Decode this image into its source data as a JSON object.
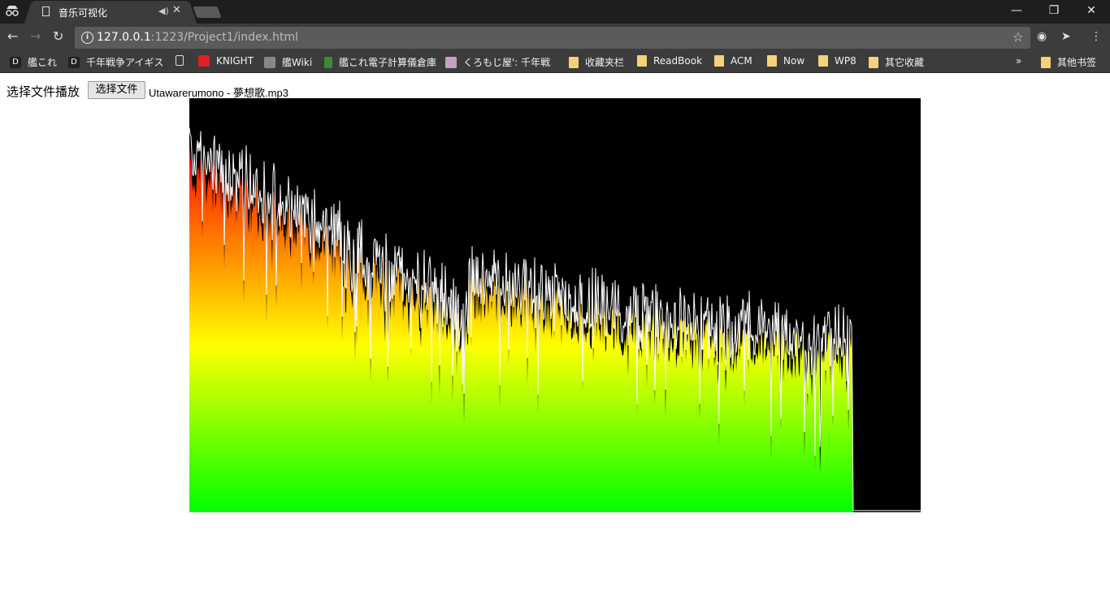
{
  "browser": {
    "tab_title": "音乐可视化",
    "url_host": "127.0.0.1",
    "url_rest": ":1223/Project1/index.html",
    "bookmarks": [
      {
        "label": "艦これ",
        "icon": "dmm-icon"
      },
      {
        "label": "千年戦争アイギス",
        "icon": "dmm-icon"
      },
      {
        "label": "",
        "icon": "page-icon"
      },
      {
        "label": "KNIGHT",
        "icon": "youtube-icon"
      },
      {
        "label": "艦Wiki",
        "icon": "wiki-icon"
      },
      {
        "label": "艦これ電子計算儀倉庫",
        "icon": "site-icon"
      },
      {
        "label": "くろもじ屋': 千年戦",
        "icon": "site-icon"
      },
      {
        "label": "收藏夹栏",
        "icon": "folder-icon"
      },
      {
        "label": "ReadBook",
        "icon": "folder-icon"
      },
      {
        "label": "ACM",
        "icon": "folder-icon"
      },
      {
        "label": "Now",
        "icon": "folder-icon"
      },
      {
        "label": "WP8",
        "icon": "folder-icon"
      },
      {
        "label": "其它收藏",
        "icon": "folder-icon"
      }
    ],
    "other_bookmarks": "其他书签",
    "overflow": "»"
  },
  "page": {
    "label": "选择文件播放",
    "button": "选择文件",
    "filename": "Utawarerumono - 夢想歌.mp3"
  },
  "visualizer": {
    "gradient_colors": [
      "#ff0000",
      "#ffff00",
      "#00ff00"
    ],
    "line_color": "#ffffff",
    "background": "#000000"
  }
}
